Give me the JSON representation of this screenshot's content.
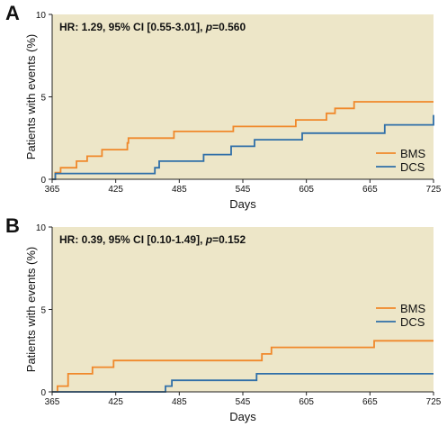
{
  "chart_data": [
    {
      "type": "line",
      "step": true,
      "panel_label": "A",
      "annotation": {
        "prefix": "HR: 1.29, 95% CI [0.55-3.01], ",
        "p_symbol": "p",
        "p_value": "=0.560"
      },
      "xlabel": "Days",
      "ylabel": "Patients with events (%)",
      "xlim": [
        365,
        725
      ],
      "ylim": [
        0,
        10
      ],
      "xticks": [
        365,
        425,
        485,
        545,
        605,
        665,
        725
      ],
      "yticks": [
        0,
        5,
        10
      ],
      "legend_position": "bottom-right",
      "grid": false,
      "background": "#ede6c8",
      "series": [
        {
          "name": "BMS",
          "color": "#f0882a",
          "x": [
            365,
            368,
            373,
            388,
            398,
            412,
            436,
            437,
            480,
            536,
            595,
            624,
            632,
            650,
            725
          ],
          "y": [
            0,
            0.4,
            0.7,
            1.1,
            1.4,
            1.8,
            2.2,
            2.5,
            2.9,
            3.2,
            3.6,
            4.0,
            4.3,
            4.7,
            4.7
          ]
        },
        {
          "name": "DCS",
          "color": "#2f6fa8",
          "x": [
            365,
            368,
            462,
            466,
            508,
            534,
            556,
            601,
            679,
            725
          ],
          "y": [
            0,
            0.35,
            0.7,
            1.1,
            1.5,
            2.0,
            2.4,
            2.8,
            3.3,
            3.9
          ]
        }
      ]
    },
    {
      "type": "line",
      "step": true,
      "panel_label": "B",
      "annotation": {
        "prefix": "HR: 0.39, 95% CI [0.10-1.49], ",
        "p_symbol": "p",
        "p_value": "=0.152"
      },
      "xlabel": "Days",
      "ylabel": "Patients with events (%)",
      "xlim": [
        365,
        725
      ],
      "ylim": [
        0,
        10
      ],
      "xticks": [
        365,
        425,
        485,
        545,
        605,
        665,
        725
      ],
      "yticks": [
        0,
        5,
        10
      ],
      "legend_position": "right",
      "grid": false,
      "background": "#ede6c8",
      "series": [
        {
          "name": "BMS",
          "color": "#f0882a",
          "x": [
            365,
            370,
            380,
            403,
            423,
            563,
            572,
            669,
            725
          ],
          "y": [
            0,
            0.35,
            1.1,
            1.5,
            1.9,
            2.3,
            2.7,
            3.1,
            3.1
          ]
        },
        {
          "name": "DCS",
          "color": "#2f6fa8",
          "x": [
            365,
            472,
            478,
            558,
            725
          ],
          "y": [
            0,
            0.35,
            0.7,
            1.1,
            1.1
          ]
        }
      ]
    }
  ]
}
